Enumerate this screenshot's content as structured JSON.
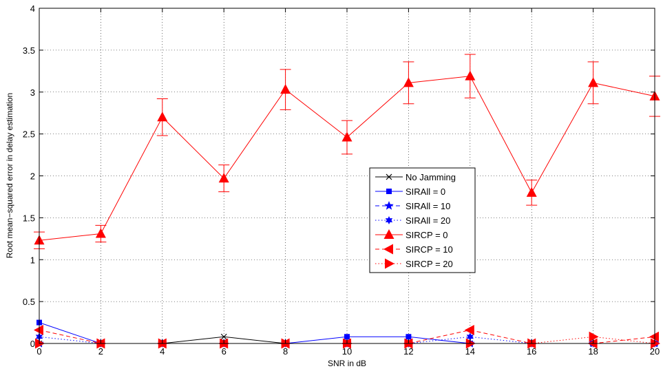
{
  "chart_data": {
    "type": "line",
    "title": "",
    "xlabel": "SNR in dB",
    "ylabel": "Root mean−squared error in delay estimation",
    "x": [
      0,
      2,
      4,
      6,
      8,
      10,
      12,
      14,
      16,
      18,
      20
    ],
    "xlim": [
      0,
      20
    ],
    "ylim": [
      0,
      4
    ],
    "xticks": [
      "0",
      "2",
      "4",
      "6",
      "8",
      "10",
      "12",
      "14",
      "16",
      "18",
      "20"
    ],
    "yticks": [
      "0",
      "0.5",
      "1",
      "1.5",
      "2",
      "2.5",
      "3",
      "3.5",
      "4"
    ],
    "grid": true,
    "legend_position": "center-right",
    "series": [
      {
        "name": "No Jamming",
        "color": "#000000",
        "marker": "x",
        "dash": "solid",
        "values": [
          0.0,
          0.0,
          0.0,
          0.08,
          0.0,
          0.0,
          0.0,
          0.0,
          0.0,
          0.0,
          0.0
        ]
      },
      {
        "name": "SIRAll = 0",
        "color": "#0000ff",
        "marker": "square",
        "dash": "solid",
        "values": [
          0.25,
          0.0,
          0.0,
          0.0,
          0.0,
          0.08,
          0.08,
          0.0,
          0.0,
          0.0,
          0.0
        ]
      },
      {
        "name": "SIRAll = 10",
        "color": "#0000ff",
        "marker": "pentagram",
        "dash": "dashed",
        "values": [
          0.0,
          0.0,
          0.0,
          0.0,
          0.0,
          0.0,
          0.0,
          0.0,
          0.0,
          0.0,
          0.0
        ]
      },
      {
        "name": "SIRAll = 20",
        "color": "#0000ff",
        "marker": "hexagram",
        "dash": "dotted",
        "values": [
          0.08,
          0.0,
          0.0,
          0.0,
          0.0,
          0.0,
          0.0,
          0.08,
          0.0,
          0.0,
          0.0
        ]
      },
      {
        "name": "SIRCP = 0",
        "color": "#ff0000",
        "marker": "triangle-up",
        "dash": "solid",
        "values": [
          1.23,
          1.31,
          2.7,
          1.97,
          3.03,
          2.46,
          3.11,
          3.19,
          1.8,
          3.11,
          2.95
        ],
        "error": [
          0.1,
          0.1,
          0.22,
          0.16,
          0.24,
          0.2,
          0.25,
          0.26,
          0.15,
          0.25,
          0.24
        ]
      },
      {
        "name": "SIRCP = 10",
        "color": "#ff0000",
        "marker": "triangle-left",
        "dash": "dashed",
        "values": [
          0.16,
          0.0,
          0.0,
          0.0,
          0.0,
          0.0,
          0.0,
          0.16,
          0.0,
          0.0,
          0.08
        ]
      },
      {
        "name": "SIRCP = 20",
        "color": "#ff0000",
        "marker": "triangle-right",
        "dash": "dotted",
        "values": [
          0.0,
          0.0,
          0.0,
          0.0,
          0.0,
          0.0,
          0.0,
          0.0,
          0.0,
          0.08,
          0.0
        ]
      }
    ]
  }
}
